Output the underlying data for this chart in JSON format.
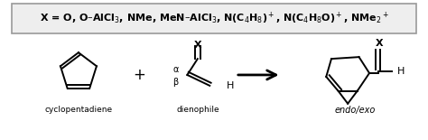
{
  "background_color": "#ffffff",
  "text_color": "#000000",
  "header_text": "X = O, O–AlCl$_3$, NMe, MeN–AlCl$_3$, N(C$_4$H$_8$)$^+$, N(C$_4$H$_8$O)$^+$, NMe$_2$$^+$",
  "label_cyclopentadiene": "cyclopentadiene",
  "label_dienophile": "dienophile",
  "label_product": "endo/exo",
  "label_alpha": "α",
  "label_beta": "β",
  "figsize": [
    4.74,
    1.55
  ],
  "dpi": 100
}
